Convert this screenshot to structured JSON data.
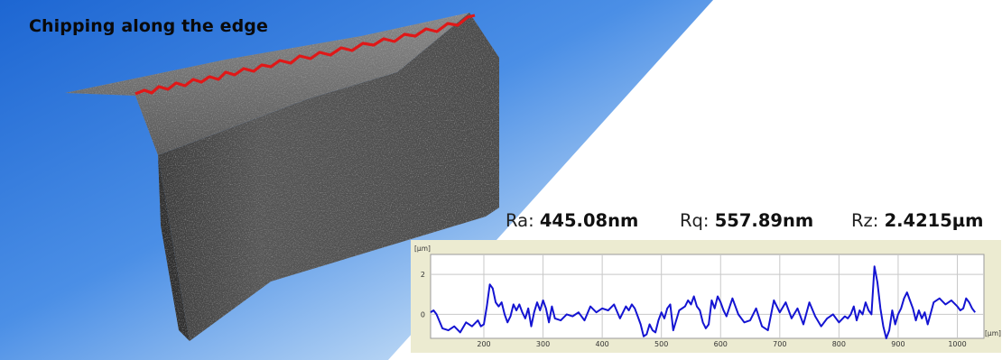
{
  "image_title": "Chipping along the edge",
  "stats": [
    {
      "label": "Ra:",
      "value": "445.08nm"
    },
    {
      "label": "Rq:",
      "value": "557.89nm"
    },
    {
      "label": "Rz:",
      "value": "2.4215µm"
    }
  ],
  "chart_data": {
    "type": "line",
    "ylabel": "[µm]",
    "xlabel": "[µm]",
    "xlim": [
      110,
      1045
    ],
    "ylim": [
      -1.2,
      3.0
    ],
    "x_ticks": [
      200,
      300,
      400,
      500,
      600,
      700,
      800,
      900,
      1000
    ],
    "y_ticks": [
      0,
      2
    ],
    "grid": true,
    "line_color": "#1414d2",
    "series": [
      {
        "x": [
          110,
          115,
          120,
          130,
          140,
          150,
          160,
          170,
          180,
          190,
          195,
          200,
          205,
          210,
          215,
          220,
          225,
          230,
          235,
          240,
          245,
          250,
          255,
          260,
          265,
          270,
          275,
          280,
          285,
          290,
          295,
          300,
          305,
          310,
          315,
          320,
          330,
          340,
          350,
          360,
          370,
          380,
          390,
          400,
          410,
          420,
          430,
          440,
          445,
          450,
          455,
          460,
          465,
          470,
          475,
          480,
          485,
          490,
          495,
          500,
          505,
          510,
          515,
          520,
          530,
          540,
          545,
          550,
          555,
          560,
          565,
          570,
          575,
          580,
          585,
          590,
          595,
          600,
          605,
          610,
          620,
          630,
          640,
          650,
          660,
          670,
          680,
          690,
          700,
          710,
          720,
          730,
          740,
          750,
          760,
          770,
          780,
          790,
          800,
          810,
          815,
          820,
          825,
          830,
          835,
          840,
          845,
          850,
          855,
          860,
          865,
          870,
          875,
          880,
          885,
          890,
          895,
          900,
          905,
          910,
          915,
          920,
          925,
          930,
          935,
          940,
          945,
          950,
          960,
          970,
          980,
          990,
          1000,
          1005,
          1010,
          1015,
          1020,
          1025,
          1030
        ],
        "y": [
          0.1,
          0.2,
          0.0,
          -0.7,
          -0.8,
          -0.6,
          -0.9,
          -0.4,
          -0.6,
          -0.3,
          -0.6,
          -0.5,
          0.4,
          1.5,
          1.3,
          0.6,
          0.4,
          0.6,
          0.0,
          -0.4,
          -0.1,
          0.5,
          0.2,
          0.5,
          0.1,
          -0.2,
          0.3,
          -0.6,
          0.1,
          0.6,
          0.2,
          0.7,
          0.3,
          -0.4,
          0.4,
          -0.2,
          -0.3,
          0.0,
          -0.1,
          0.1,
          -0.3,
          0.4,
          0.1,
          0.3,
          0.2,
          0.5,
          -0.2,
          0.4,
          0.2,
          0.5,
          0.3,
          -0.1,
          -0.5,
          -1.1,
          -1.0,
          -0.5,
          -0.8,
          -0.9,
          -0.3,
          0.1,
          -0.2,
          0.3,
          0.5,
          -0.8,
          0.2,
          0.4,
          0.7,
          0.5,
          0.9,
          0.4,
          0.2,
          -0.4,
          -0.7,
          -0.5,
          0.7,
          0.3,
          0.9,
          0.6,
          0.2,
          -0.1,
          0.8,
          0.0,
          -0.4,
          -0.3,
          0.3,
          -0.6,
          -0.8,
          0.7,
          0.1,
          0.6,
          -0.2,
          0.3,
          -0.5,
          0.6,
          -0.1,
          -0.6,
          -0.2,
          0.0,
          -0.4,
          -0.1,
          -0.2,
          0.0,
          0.4,
          -0.3,
          0.2,
          0.0,
          0.6,
          0.2,
          0.0,
          2.4,
          1.6,
          0.3,
          -0.6,
          -1.2,
          -0.8,
          0.2,
          -0.5,
          0.0,
          0.3,
          0.8,
          1.1,
          0.7,
          0.3,
          -0.3,
          0.2,
          -0.2,
          0.1,
          -0.5,
          0.6,
          0.8,
          0.5,
          0.7,
          0.4,
          0.2,
          0.3,
          0.8,
          0.6,
          0.3,
          0.1
        ]
      }
    ]
  }
}
